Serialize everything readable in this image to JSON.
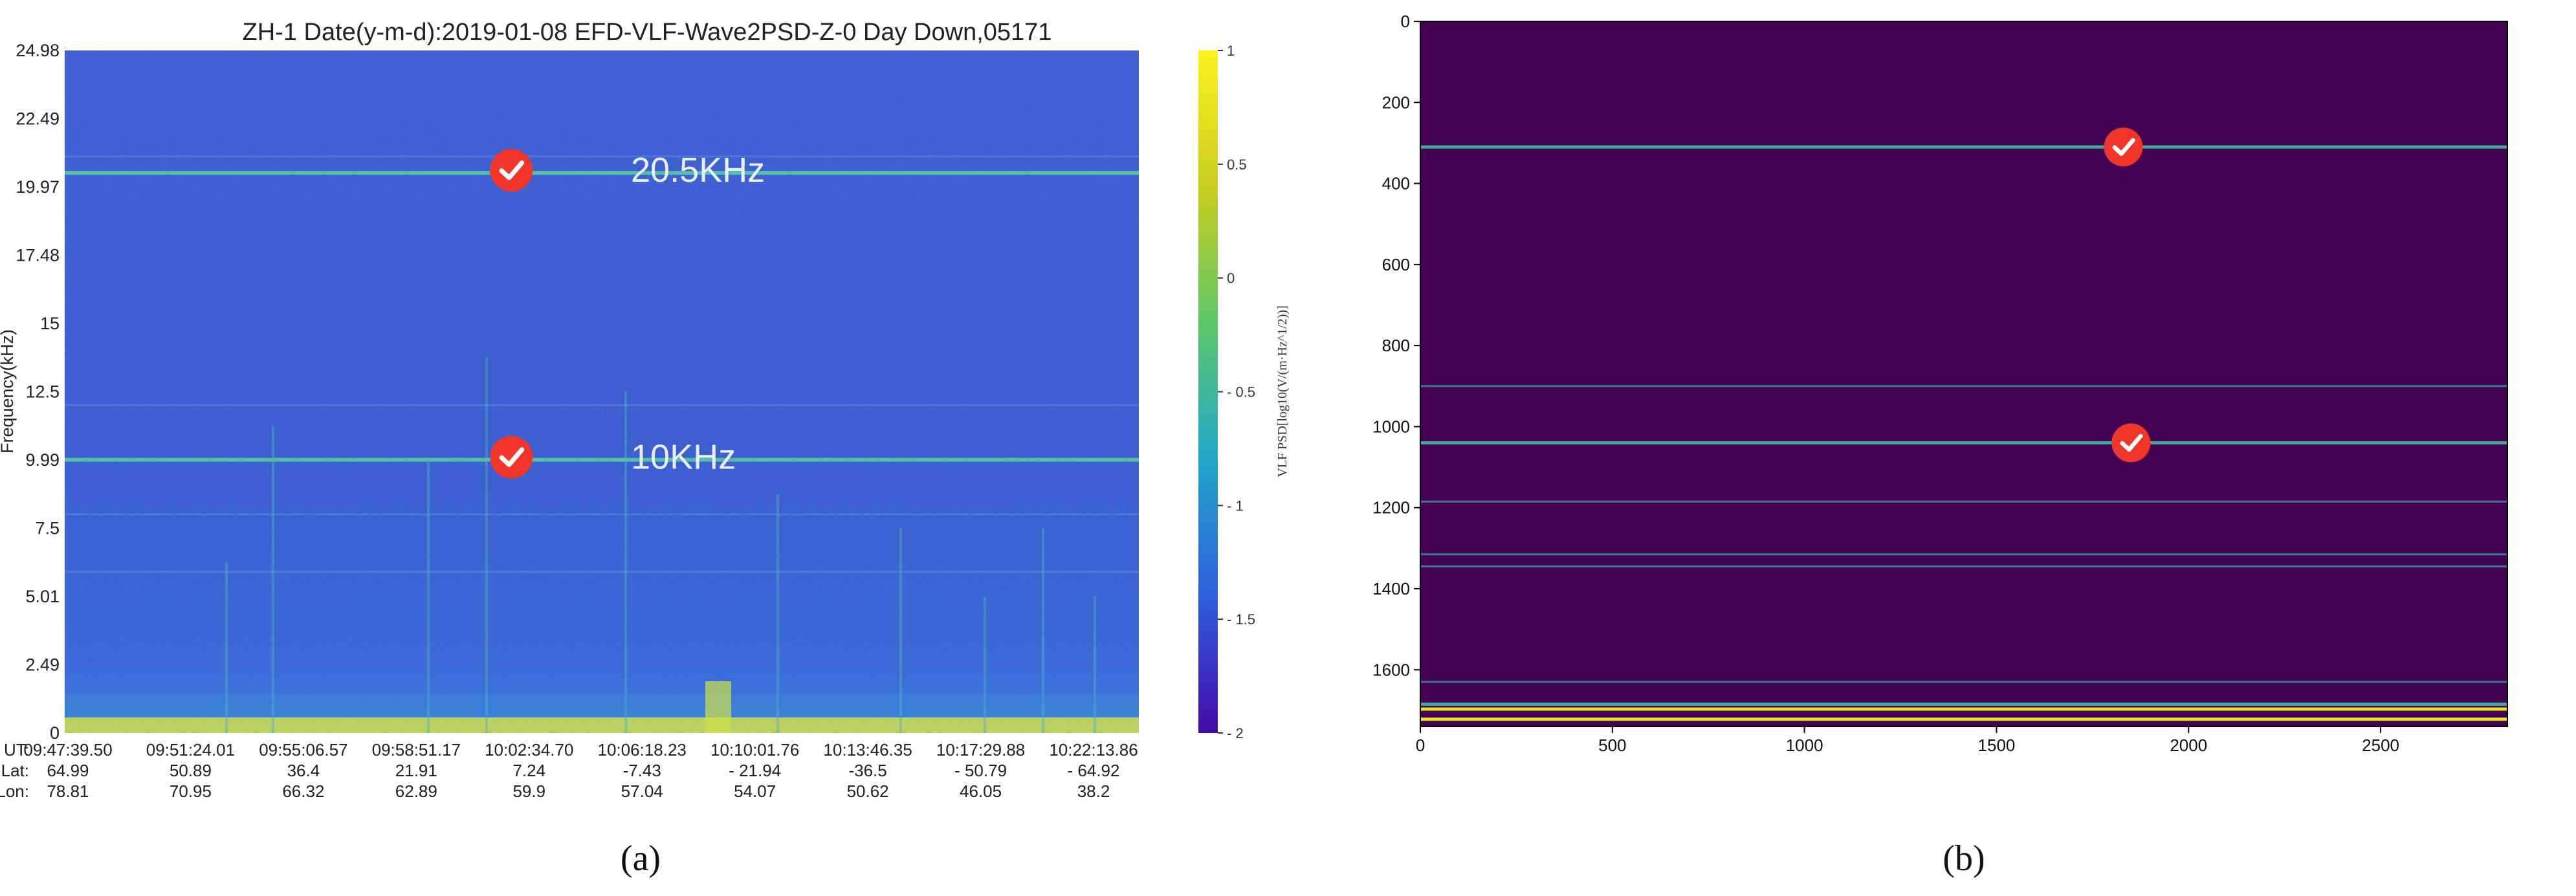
{
  "colors": {
    "spectrogram_bg": "#2e4fc4",
    "spectrogram_band": "#cfe04a",
    "marker_red": "#f0362a",
    "viridis_bg": "#440154",
    "viridis_teal": "#3fa89a",
    "viridis_yellow": "#e6e41c",
    "colorbar_stops": [
      "#440aa8",
      "#2f5fdd",
      "#22a6c8",
      "#5cc76a",
      "#c9cd1d",
      "#fdf21f"
    ]
  },
  "panel_labels": [
    "(a)",
    "(b)"
  ],
  "chart_data": [
    {
      "type": "heatmap",
      "title": "ZH-1  Date(y-m-d):2019-01-08  EFD-VLF-Wave2PSD-Z-0 Day Down,05171",
      "ylabel": "Frequency(kHz)",
      "yticks": [
        "24.98",
        "22.49",
        "19.97",
        "17.48",
        "15",
        "12.5",
        "9.99",
        "7.5",
        "5.01",
        "2.49",
        "0"
      ],
      "ylim": [
        0,
        24.98
      ],
      "x_axis_rows": [
        {
          "label": "UT:",
          "values": [
            "09:47:39.50",
            "09:51:24.01",
            "09:55:06.57",
            "09:58:51.17",
            "10:02:34.70",
            "10:06:18.23",
            "10:10:01.76",
            "10:13:46.35",
            "10:17:29.88",
            "10:22:13.86"
          ]
        },
        {
          "label": "Lat:",
          "values": [
            "64.99",
            "50.89",
            "36.4",
            "21.91",
            "7.24",
            "-7.43",
            "- 21.94",
            "-36.5",
            "- 50.79",
            "- 64.92"
          ]
        },
        {
          "label": "Lon:",
          "values": [
            "78.81",
            "70.95",
            "66.32",
            "62.89",
            "59.9",
            "57.04",
            "54.07",
            "50.62",
            "46.05",
            "38.2"
          ]
        }
      ],
      "colorbar": {
        "label": "VLF PSD[log10(V/(m·Hz^1/2))]",
        "ticks": [
          "1",
          "0.5",
          "0",
          "- 0.5",
          "- 1",
          "- 1.5",
          "- 2"
        ],
        "range": [
          -2,
          1
        ]
      },
      "annotations": [
        {
          "text": "20.5KHz",
          "frequency_khz": 20.5
        },
        {
          "text": "10KHz",
          "frequency_khz": 10
        }
      ],
      "bright_lines_khz": [
        20.5,
        10
      ]
    },
    {
      "type": "heatmap",
      "xticks": [
        "0",
        "500",
        "1000",
        "1500",
        "2000",
        "2500"
      ],
      "yticks": [
        "0",
        "200",
        "400",
        "600",
        "800",
        "1000",
        "1200",
        "1400",
        "1600"
      ],
      "xlim": [
        0,
        2830
      ],
      "ylim": [
        0,
        1740
      ],
      "y_inverted": true,
      "lines": [
        {
          "y": 310,
          "color": "teal",
          "strength": "bright"
        },
        {
          "y": 900,
          "color": "teal",
          "strength": "faint"
        },
        {
          "y": 1040,
          "color": "teal",
          "strength": "bright"
        },
        {
          "y": 1185,
          "color": "teal",
          "strength": "faint"
        },
        {
          "y": 1315,
          "color": "teal",
          "strength": "faint"
        },
        {
          "y": 1345,
          "color": "teal",
          "strength": "faint"
        },
        {
          "y": 1630,
          "color": "teal",
          "strength": "faint"
        },
        {
          "y": 1685,
          "color": "teal",
          "strength": "bright"
        },
        {
          "y": 1697,
          "color": "yellow",
          "strength": "bright"
        },
        {
          "y": 1722,
          "color": "yellow",
          "strength": "bright"
        }
      ],
      "markers_y": [
        310,
        1040
      ]
    }
  ]
}
